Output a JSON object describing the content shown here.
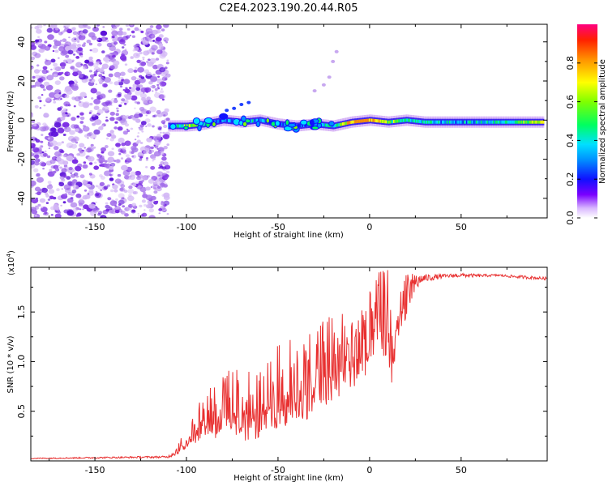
{
  "title": "C2E4.2023.190.20.44.R05",
  "chart_data": [
    {
      "type": "heatmap",
      "description_role": "spectrogram",
      "xlabel": "Height of straight line (km)",
      "ylabel": "Frequency (Hz)",
      "xlim": [
        -185,
        97
      ],
      "ylim": [
        -50,
        49
      ],
      "xticks": [
        -150,
        -100,
        -50,
        0,
        50
      ],
      "yticks": [
        -40,
        -20,
        0,
        20,
        40
      ],
      "noise_region_x": [
        -185,
        -110
      ],
      "signal_track": {
        "x": [
          -110,
          -100,
          -90,
          -80,
          -70,
          -60,
          -50,
          -40,
          -30,
          -20,
          -10,
          0,
          10,
          20,
          30,
          50,
          70,
          95
        ],
        "frequency": [
          -3,
          -3,
          -2,
          0,
          -1,
          0,
          -2,
          -3,
          -2,
          -3,
          -1,
          0,
          -1,
          0,
          -1,
          -1,
          -1,
          -1
        ],
        "amplitude": [
          0.3,
          0.7,
          0.4,
          0.35,
          0.45,
          0.4,
          0.3,
          0.35,
          0.4,
          0.45,
          0.85,
          0.9,
          0.65,
          0.5,
          0.45,
          0.4,
          0.45,
          0.8
        ]
      },
      "colorbar": {
        "label": "Normalized spectral amplitude",
        "range": [
          0.0,
          1.0
        ],
        "ticks": [
          "0.0",
          "0.2",
          "0.4",
          "0.6",
          "0.8"
        ]
      }
    },
    {
      "type": "line",
      "xlabel": "Height of straight line (km)",
      "ylabel": "SNR (10 * v/v)",
      "scale_note_base": "(x10",
      "scale_note_exp": "4",
      "scale_note_end": ")",
      "xlim": [
        -185,
        97
      ],
      "ylim": [
        0,
        1.95
      ],
      "xticks": [
        -150,
        -100,
        -50,
        0,
        50
      ],
      "yticks": [
        0.5,
        1.0,
        1.5
      ],
      "ytick_labels": [
        "0.5",
        "1.0",
        "1.5"
      ],
      "series_color": "#e83030",
      "envelope": {
        "x": [
          -185,
          -110,
          -105,
          -100,
          -95,
          -90,
          -80,
          -70,
          -60,
          -50,
          -40,
          -30,
          -20,
          -10,
          0,
          5,
          10,
          12,
          15,
          20,
          25,
          30,
          40,
          50,
          60,
          70,
          80,
          90,
          97
        ],
        "base": [
          0.02,
          0.03,
          0.06,
          0.12,
          0.18,
          0.25,
          0.2,
          0.2,
          0.2,
          0.32,
          0.38,
          0.45,
          0.55,
          0.72,
          0.9,
          1.05,
          1.05,
          0.65,
          1.15,
          1.45,
          1.72,
          1.8,
          1.84,
          1.85,
          1.85,
          1.86,
          1.84,
          1.83,
          1.82
        ],
        "top": [
          0.03,
          0.05,
          0.15,
          0.35,
          0.55,
          0.75,
          0.9,
          0.95,
          0.9,
          1.2,
          1.25,
          1.35,
          1.5,
          1.55,
          1.7,
          1.9,
          1.95,
          1.4,
          1.75,
          1.95,
          1.9,
          1.88,
          1.88,
          1.89,
          1.88,
          1.88,
          1.87,
          1.86,
          1.85
        ]
      }
    }
  ]
}
